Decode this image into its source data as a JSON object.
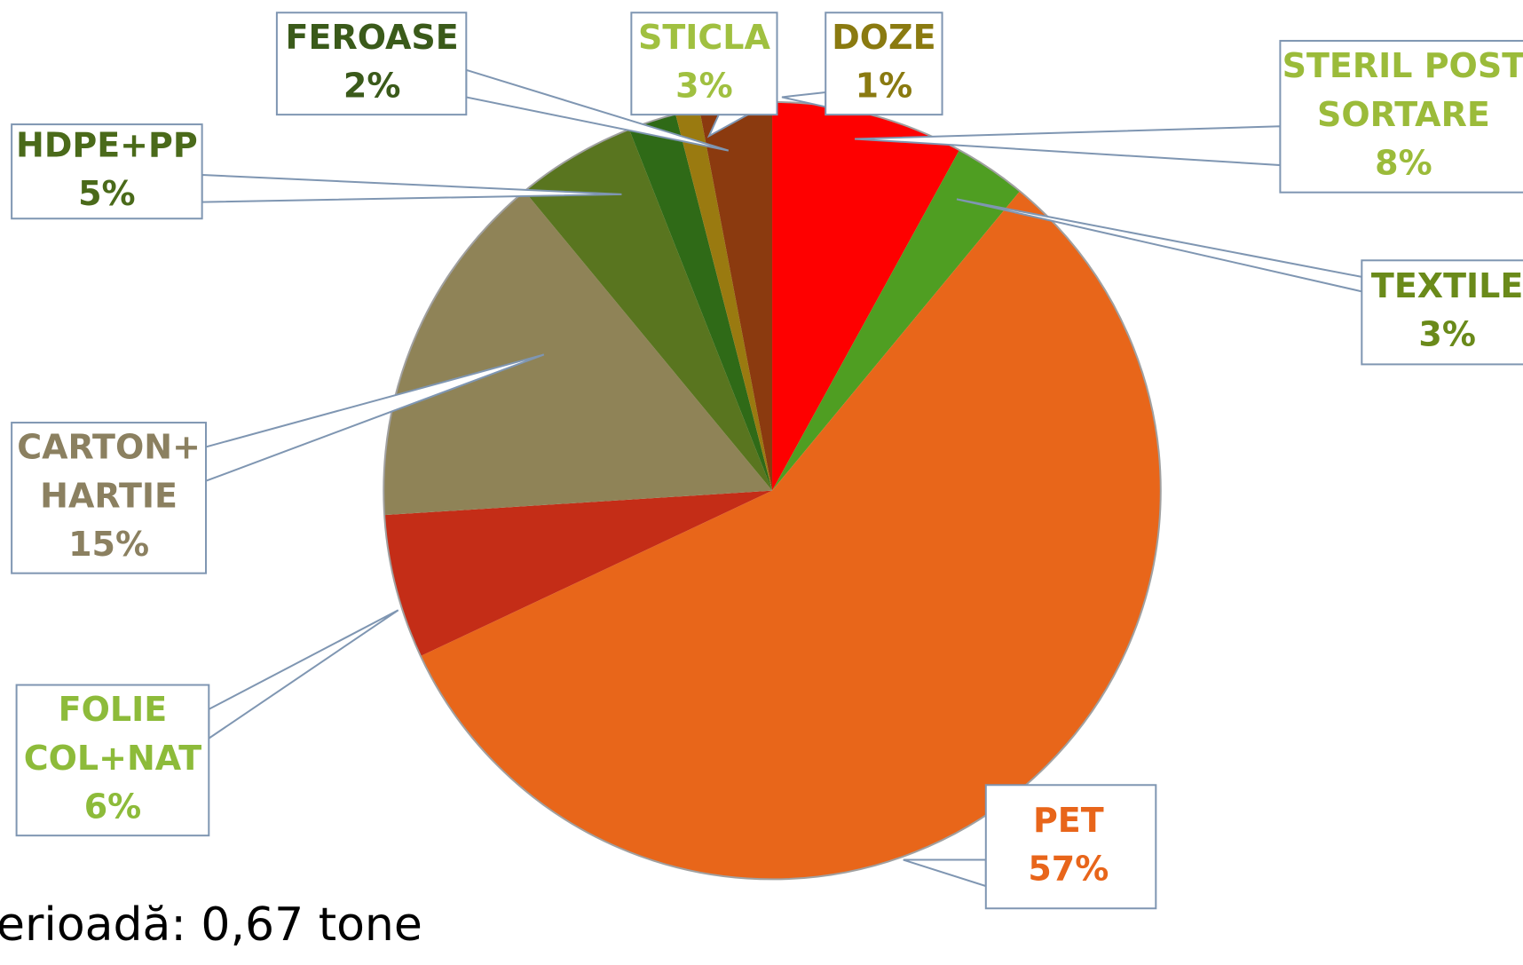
{
  "chart_data": {
    "type": "pie",
    "categories": [
      [
        "STERIL POST",
        "SORTARE"
      ],
      [
        "TEXTILE"
      ],
      [
        "PET"
      ],
      [
        "FOLIE",
        "COL+NAT"
      ],
      [
        "CARTON+",
        "HARTIE"
      ],
      [
        "HDPE+PP"
      ],
      [
        "FEROASE"
      ],
      [
        "DOZE"
      ],
      [
        "STICLA"
      ]
    ],
    "values": [
      8,
      3,
      57,
      6,
      15,
      5,
      2,
      1,
      3
    ],
    "value_labels": [
      "8%",
      "3%",
      "57%",
      "6%",
      "15%",
      "5%",
      "2%",
      "1%",
      "3%"
    ],
    "colors": [
      "#fe0000",
      "#4f9e22",
      "#e8661a",
      "#c42d17",
      "#8f8357",
      "#59751f",
      "#2f6a17",
      "#9a7a10",
      "#8b3a0f"
    ],
    "label_colors": [
      "#9bbb3a",
      "#6a8a1a",
      "#e8651a",
      "#8dbb3a",
      "#8b8060",
      "#4a6a1a",
      "#3a5a1a",
      "#8a7a10",
      "#a0c040"
    ],
    "footnote": "erioadă: 0,67 tone"
  }
}
